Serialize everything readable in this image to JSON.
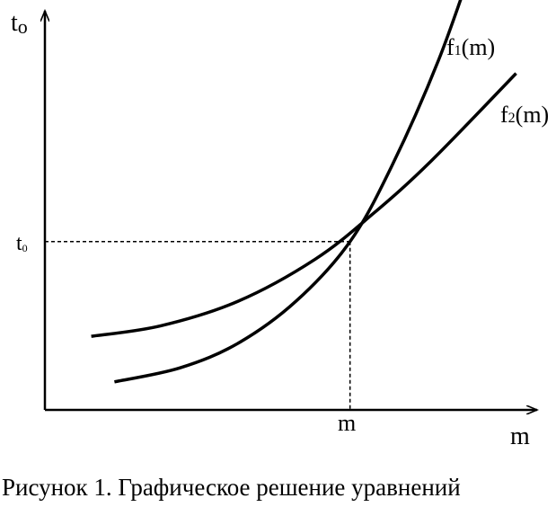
{
  "chart_data": {
    "type": "line",
    "title": "",
    "xlabel": "m",
    "ylabel": "t",
    "ylabel_sub": "o",
    "x_tick_label": "m",
    "y_tick_label": "t",
    "y_tick_sub": "0",
    "grid": false,
    "legend": "none",
    "series": [
      {
        "name": "f",
        "name_sub": "1",
        "name_suffix": "(m)",
        "note": "steeper curve",
        "x": [
          0.18,
          0.35,
          0.5,
          0.65,
          0.79,
          0.9,
          1.02,
          1.12
        ],
        "y": [
          0.08,
          0.12,
          0.19,
          0.31,
          0.48,
          0.7,
          1.0,
          1.31
        ]
      },
      {
        "name": "f",
        "name_sub": "2",
        "name_suffix": "(m)",
        "note": "flatter curve",
        "x": [
          0.12,
          0.3,
          0.5,
          0.7,
          0.85,
          1.0,
          1.22
        ],
        "y": [
          0.21,
          0.24,
          0.31,
          0.43,
          0.56,
          0.71,
          0.96
        ]
      }
    ],
    "intersection": {
      "x": 0.79,
      "y": 0.48
    }
  },
  "caption": "Рисунок 1. Графическое решение уравнений"
}
